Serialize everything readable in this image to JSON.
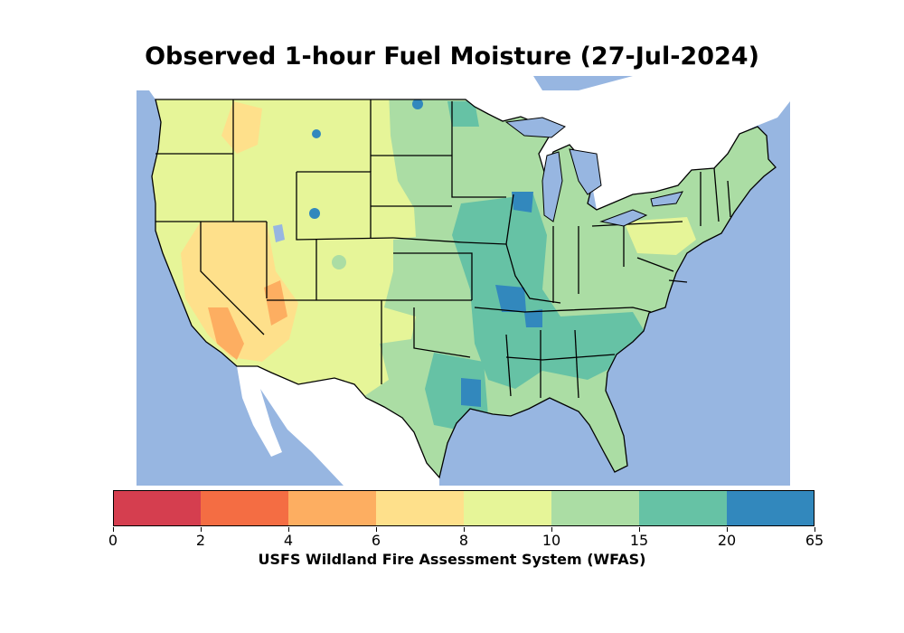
{
  "title": "Observed 1-hour Fuel Moisture (27-Jul-2024)",
  "colorbar": {
    "label": "USFS Wildland Fire Assessment System (WFAS)",
    "tick_labels": [
      "0",
      "2",
      "4",
      "6",
      "8",
      "10",
      "15",
      "20",
      "65"
    ],
    "bins": [
      {
        "min": 0,
        "max": 2,
        "color": "#d53e4f"
      },
      {
        "min": 2,
        "max": 4,
        "color": "#f46d43"
      },
      {
        "min": 4,
        "max": 6,
        "color": "#fdae61"
      },
      {
        "min": 6,
        "max": 8,
        "color": "#fee08b"
      },
      {
        "min": 8,
        "max": 10,
        "color": "#e6f598"
      },
      {
        "min": 10,
        "max": 15,
        "color": "#abdda4"
      },
      {
        "min": 15,
        "max": 20,
        "color": "#66c2a5"
      },
      {
        "min": 20,
        "max": 65,
        "color": "#3288bd"
      }
    ]
  },
  "map_colors": {
    "water": "#97b6e1",
    "land_outside": "#ffffff",
    "borders": "#000000"
  }
}
